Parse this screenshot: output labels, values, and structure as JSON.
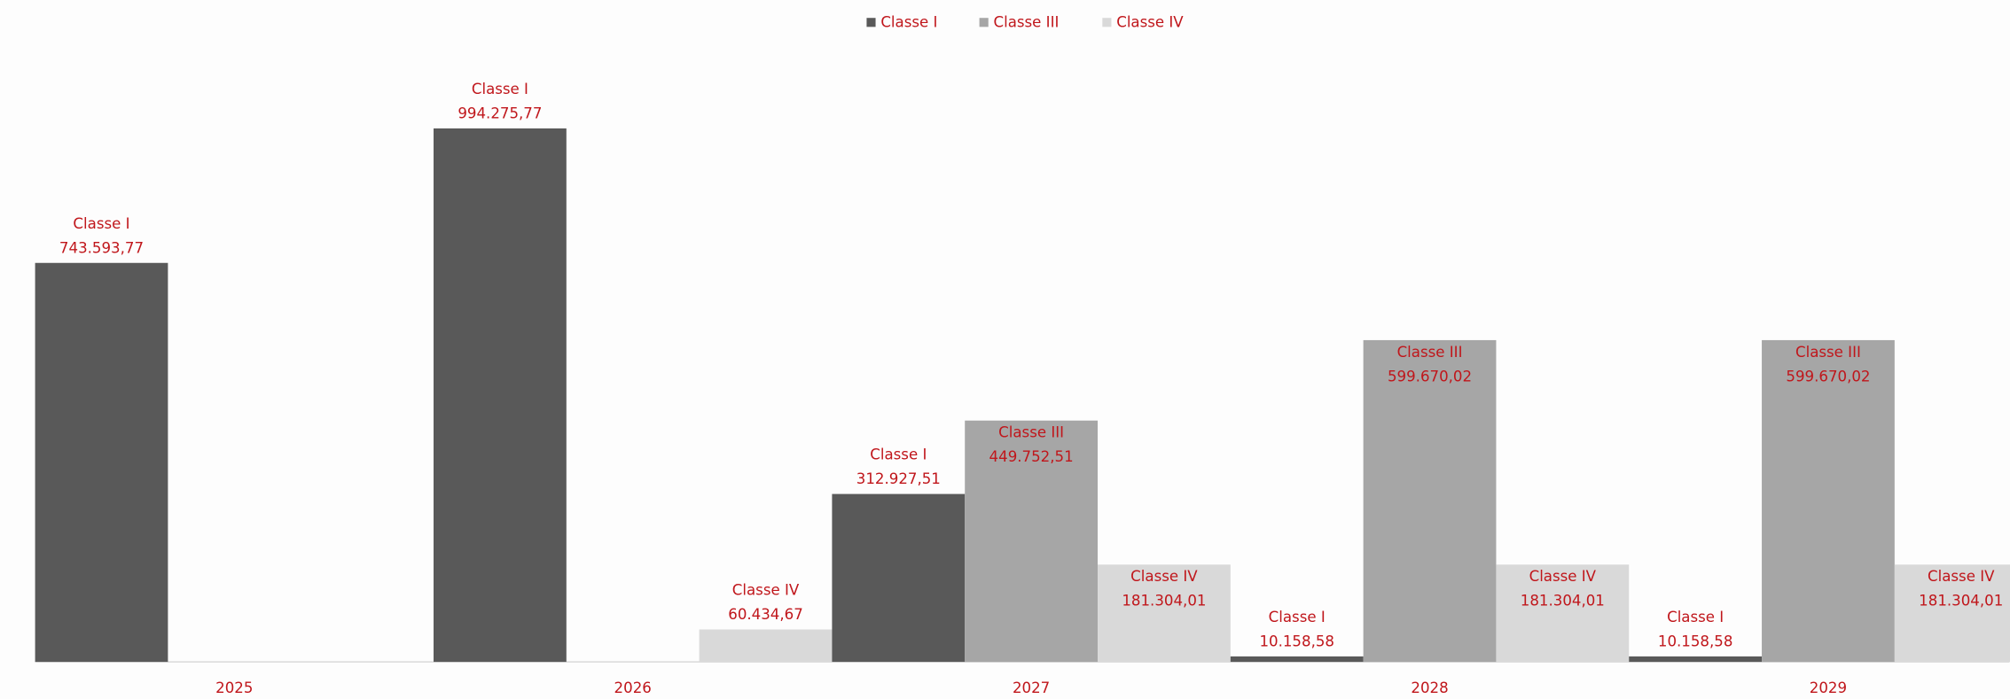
{
  "chart_data": {
    "type": "bar",
    "categories": [
      "2025",
      "2026",
      "2027",
      "2028",
      "2029"
    ],
    "series": [
      {
        "name": "Classe I",
        "color": "#595959",
        "label_position": "outside",
        "values": [
          743593.77,
          994275.77,
          312927.51,
          10158.58,
          10158.58
        ],
        "value_labels": [
          "743.593,77",
          "994.275,77",
          "312.927,51",
          "10.158,58",
          "10.158,58"
        ]
      },
      {
        "name": "Classe III",
        "color": "#a6a6a6",
        "label_position": "inside",
        "values": [
          null,
          null,
          449752.51,
          599670.02,
          599670.02
        ],
        "value_labels": [
          null,
          null,
          "449.752,51",
          "599.670,02",
          "599.670,02"
        ]
      },
      {
        "name": "Classe IV",
        "color": "#d9d9d9",
        "label_position": "inside",
        "values": [
          null,
          60434.67,
          181304.01,
          181304.01,
          181304.01
        ],
        "value_labels": [
          null,
          "60.434,67",
          "181.304,01",
          "181.304,01",
          "181.304,01"
        ]
      }
    ],
    "ylim": [
      0,
      1100000
    ],
    "legend": "top"
  }
}
